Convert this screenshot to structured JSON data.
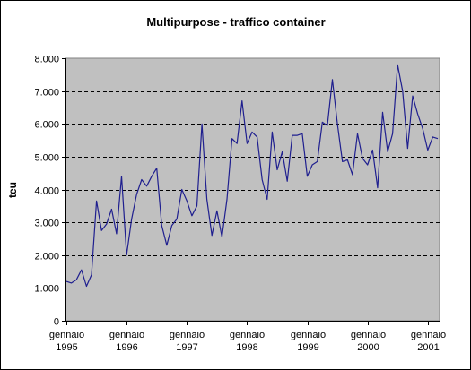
{
  "chart_data": {
    "type": "line",
    "title": "Multipurpose - traffico container",
    "xlabel": "",
    "ylabel": "teu",
    "ylim": [
      0,
      8000
    ],
    "yticks": [
      {
        "value": 0,
        "label": "0"
      },
      {
        "value": 1000,
        "label": "1.000"
      },
      {
        "value": 2000,
        "label": "2.000"
      },
      {
        "value": 3000,
        "label": "3.000"
      },
      {
        "value": 4000,
        "label": "4.000"
      },
      {
        "value": 5000,
        "label": "5.000"
      },
      {
        "value": 6000,
        "label": "6.000"
      },
      {
        "value": 7000,
        "label": "7.000"
      },
      {
        "value": 8000,
        "label": "8.000"
      }
    ],
    "xticks": [
      {
        "month_index": 0,
        "line1": "gennaio",
        "line2": "1995"
      },
      {
        "month_index": 12,
        "line1": "gennaio",
        "line2": "1996"
      },
      {
        "month_index": 24,
        "line1": "gennaio",
        "line2": "1997"
      },
      {
        "month_index": 36,
        "line1": "gennaio",
        "line2": "1998"
      },
      {
        "month_index": 48,
        "line1": "gennaio",
        "line2": "1999"
      },
      {
        "month_index": 60,
        "line1": "gennaio",
        "line2": "2000"
      },
      {
        "month_index": 72,
        "line1": "gennaio",
        "line2": "2001"
      }
    ],
    "grid": "horizontal-dashed",
    "colors": {
      "line": "#1f1f8f",
      "plot_bg": "#c0c0c0"
    },
    "series": [
      {
        "values": [
          1200,
          1150,
          1250,
          1550,
          1050,
          1400,
          3650,
          2750,
          2950,
          3400,
          2650,
          4400,
          2000,
          3100,
          3850,
          4300,
          4100,
          4400,
          4650,
          2900,
          2300,
          2900,
          3100,
          4000,
          3650,
          3200,
          3500,
          6000,
          3700,
          2600,
          3350,
          2550,
          3700,
          5550,
          5400,
          6700,
          5400,
          5750,
          5600,
          4300,
          3700,
          5750,
          4600,
          5150,
          4250,
          5650,
          5650,
          5700,
          4400,
          4750,
          4850,
          6050,
          5950,
          7350,
          6000,
          4850,
          4900,
          4450,
          5700,
          4950,
          4750,
          5200,
          4050,
          6350,
          5150,
          5700,
          7800,
          7000,
          5250,
          6850,
          6300,
          5850,
          5200,
          5600,
          5550
        ]
      }
    ]
  }
}
